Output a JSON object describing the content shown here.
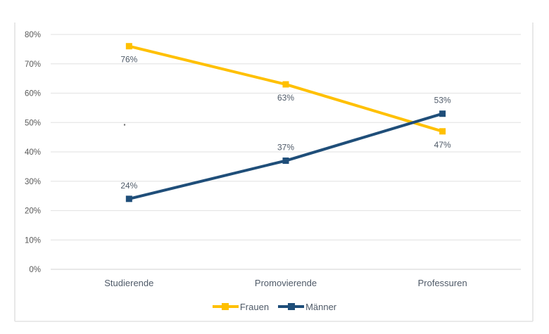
{
  "page": {
    "background_color": "#FFFFFF"
  },
  "chart_data": {
    "type": "line",
    "title": "",
    "value_format": "percent",
    "categories": [
      "Studierende",
      "Promovierende",
      "Professuren"
    ],
    "series": [
      {
        "name": "Frauen",
        "color": "#FFC000",
        "values": [
          76,
          63,
          47
        ],
        "data_labels": [
          "76%",
          "63%",
          "47%"
        ],
        "data_label_position": "below",
        "marker": "square"
      },
      {
        "name": "Männer",
        "color": "#1F4E79",
        "values": [
          24,
          37,
          53
        ],
        "data_labels": [
          "24%",
          "37%",
          "53%"
        ],
        "data_label_position": "above",
        "marker": "square"
      }
    ],
    "x_axis": {
      "label": ""
    },
    "y_axis": {
      "label": "",
      "min": 0,
      "max": 80,
      "tick_step": 10,
      "ticks": [
        "0%",
        "10%",
        "20%",
        "30%",
        "40%",
        "50%",
        "60%",
        "70%",
        "80%"
      ]
    },
    "grid": true,
    "legend_position": "bottom",
    "colors": {
      "gridline": "#E6E6E6",
      "axis_line": "#D9D9D9",
      "frame_border": "#E3E3E3",
      "tick_label": "#595959",
      "text": "#4F5A68"
    }
  }
}
